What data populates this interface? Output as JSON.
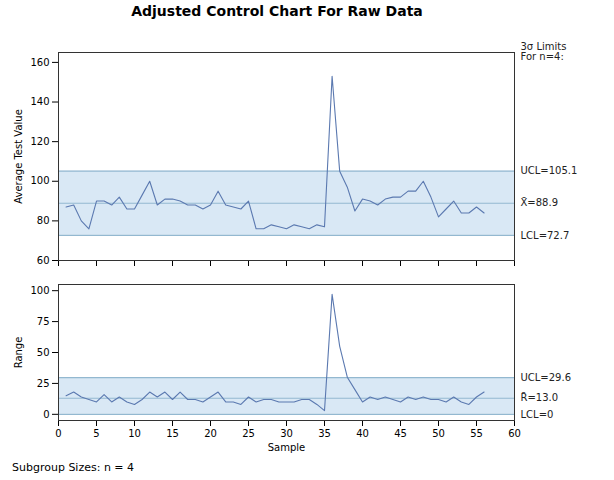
{
  "chart_data": [
    {
      "type": "line",
      "title": "Adjusted Control Chart For Raw Data",
      "subtitle": "3σ Limits\nFor n=4:",
      "ylabel": "Average Test Value",
      "x": [
        1,
        2,
        3,
        4,
        5,
        6,
        7,
        8,
        9,
        10,
        11,
        12,
        13,
        14,
        15,
        16,
        17,
        18,
        19,
        20,
        21,
        22,
        23,
        24,
        25,
        26,
        27,
        28,
        29,
        30,
        31,
        32,
        33,
        34,
        35,
        36,
        37,
        38,
        39,
        40,
        41,
        42,
        43,
        44,
        45,
        46,
        47,
        48,
        49,
        50,
        51,
        52,
        53,
        54,
        55,
        56
      ],
      "values": [
        87,
        88,
        80,
        76,
        90,
        90,
        88,
        92,
        86,
        86,
        93,
        100,
        88,
        91,
        91,
        90,
        88,
        88,
        86,
        88,
        95,
        88,
        87,
        86,
        90,
        76,
        76,
        78,
        77,
        76,
        78,
        77,
        76,
        78,
        77,
        153,
        105,
        97,
        85,
        91,
        90,
        88,
        91,
        92,
        92,
        95,
        95,
        100,
        92,
        82,
        86,
        90,
        84,
        84,
        87,
        84
      ],
      "color": "#5b79b0",
      "xlim": [
        0,
        60
      ],
      "xticks": [
        0,
        5,
        10,
        15,
        20,
        25,
        30,
        35,
        40,
        45,
        50,
        55,
        60
      ],
      "ylim": [
        60,
        165
      ],
      "yticks": [
        60,
        80,
        100,
        120,
        140,
        160
      ],
      "tick_labels": "y",
      "grid": false,
      "band": {
        "lo": 72.7,
        "hi": 105.1,
        "color": "#d9e8f5"
      },
      "control_limits": {
        "color": "#93b8d0",
        "lines": [
          {
            "value": 105.1,
            "label": "UCL=105.1"
          },
          {
            "value": 88.9,
            "label": "X̄=88.9"
          },
          {
            "value": 72.7,
            "label": "LCL=72.7"
          }
        ]
      }
    },
    {
      "type": "line",
      "xlabel": "Sample",
      "ylabel": "Range",
      "caption": "Subgroup Sizes:     n = 4",
      "x": [
        1,
        2,
        3,
        4,
        5,
        6,
        7,
        8,
        9,
        10,
        11,
        12,
        13,
        14,
        15,
        16,
        17,
        18,
        19,
        20,
        21,
        22,
        23,
        24,
        25,
        26,
        27,
        28,
        29,
        30,
        31,
        32,
        33,
        34,
        35,
        36,
        37,
        38,
        39,
        40,
        41,
        42,
        43,
        44,
        45,
        46,
        47,
        48,
        49,
        50,
        51,
        52,
        53,
        54,
        55,
        56
      ],
      "values": [
        15,
        18,
        14,
        12,
        10,
        16,
        10,
        14,
        10,
        8,
        12,
        18,
        14,
        18,
        12,
        18,
        12,
        12,
        10,
        14,
        18,
        10,
        10,
        8,
        14,
        10,
        12,
        12,
        10,
        10,
        10,
        12,
        12,
        8,
        3,
        97,
        55,
        30,
        20,
        10,
        14,
        12,
        14,
        12,
        10,
        14,
        12,
        14,
        12,
        12,
        10,
        14,
        10,
        8,
        14,
        18
      ],
      "color": "#5b79b0",
      "xlim": [
        0,
        60
      ],
      "xticks": [
        0,
        5,
        10,
        15,
        20,
        25,
        30,
        35,
        40,
        45,
        50,
        55,
        60
      ],
      "ylim": [
        -5,
        105
      ],
      "yticks": [
        0,
        25,
        50,
        75,
        100
      ],
      "grid": false,
      "band": {
        "lo": 0,
        "hi": 29.6,
        "color": "#d9e8f5"
      },
      "control_limits": {
        "color": "#93b8d0",
        "lines": [
          {
            "value": 29.6,
            "label": "UCL=29.6"
          },
          {
            "value": 13.0,
            "label": "R̄=13.0"
          },
          {
            "value": 0,
            "label": "LCL=0"
          }
        ]
      }
    }
  ]
}
